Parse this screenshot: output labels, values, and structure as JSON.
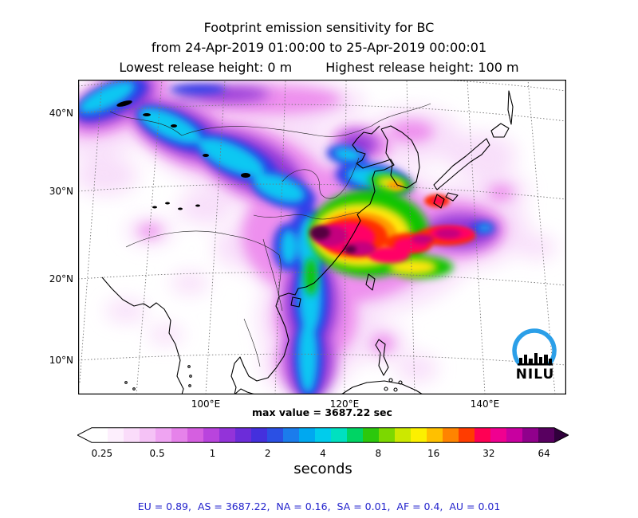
{
  "title": {
    "line1": "Footprint emission sensitivity for BC",
    "line2": "from 24-Apr-2019 01:00:00 to 25-Apr-2019 00:00:01",
    "line3_left": "Lowest release height: 0 m",
    "line3_right": "Highest release height: 100 m"
  },
  "map": {
    "lat_ticks": [
      "40°N",
      "30°N",
      "20°N",
      "10°N"
    ],
    "lon_ticks": [
      "100°E",
      "120°E",
      "140°E"
    ],
    "max_value_label": "max value = 3687.22 sec",
    "logo_text": "NILU",
    "logo_arc_color": "#2b9fe8"
  },
  "colorbar": {
    "tick_labels": [
      "0.25",
      "0.5",
      "1",
      "2",
      "4",
      "8",
      "16",
      "32",
      "64"
    ],
    "unit_label": "seconds",
    "left_arrow_color": "#ffffff",
    "right_arrow_color": "#30003c",
    "segment_colors": [
      "#ffffff",
      "#fdeffd",
      "#fadcfa",
      "#f5c2f6",
      "#efa4f2",
      "#e682ea",
      "#d55fe0",
      "#b944dd",
      "#9333d9",
      "#6c2cd9",
      "#4430dd",
      "#2b50e4",
      "#1b7cec",
      "#00a8f0",
      "#00ccec",
      "#00e0c0",
      "#00d464",
      "#2cc80c",
      "#7cd800",
      "#cce800",
      "#fcf000",
      "#ffc000",
      "#ff8400",
      "#ff3c00",
      "#ff0054",
      "#f00090",
      "#c800a0",
      "#90008c",
      "#580060"
    ]
  },
  "footer": {
    "region_totals": "EU = 0.89,  AS = 3687.22,  NA = 0.16,  SA = 0.01,  AF = 0.4,  AU = 0.01",
    "color": "#2222cc"
  },
  "chart_data": {
    "type": "heatmap",
    "title": "Footprint emission sensitivity for BC",
    "time_range": {
      "from": "24-Apr-2019 01:00:00",
      "to": "25-Apr-2019 00:00:01"
    },
    "release_height_m": {
      "lowest": 0,
      "highest": 100
    },
    "units": "seconds",
    "max_value_sec": 3687.22,
    "colorbar": {
      "scale": "log2",
      "tick_values": [
        0.25,
        0.5,
        1,
        2,
        4,
        8,
        16,
        32,
        64
      ],
      "unit": "seconds",
      "open_ended_low": true,
      "open_ended_high": true
    },
    "map_axes": {
      "lat_ticks_deg_n": [
        40,
        30,
        20,
        10
      ],
      "lon_ticks_deg_e": [
        100,
        120,
        140
      ],
      "grid": "dashed"
    },
    "region_sensitivity": {
      "EU": 0.89,
      "AS": 3687.22,
      "NA": 0.16,
      "SA": 0.01,
      "AF": 0.4,
      "AU": 0.01
    }
  }
}
